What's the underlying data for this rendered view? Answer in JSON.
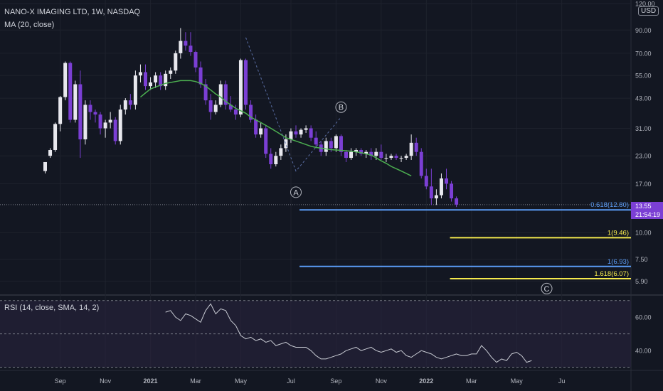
{
  "header": {
    "symbol_title": "NANO-X IMAGING LTD, 1W, NASDAQ",
    "ma_label": "MA (20, close)",
    "rsi_label": "RSI (14, close, SMA, 14, 2)",
    "currency": "USD"
  },
  "price_tag": {
    "price": "13.55",
    "countdown": "21:54:19"
  },
  "colors": {
    "background": "#131722",
    "up_candle": "#e8e8ee",
    "down_candle": "#7b3fd4",
    "ma_line": "#4caf50",
    "fib_blue": "#5b9cf6",
    "fib_yellow": "#f5e94d",
    "rsi_line": "#c8cbd3",
    "rsi_band": "#2a2440",
    "grid": "#1e222d",
    "axis_text": "#b2b5be"
  },
  "chart_data": [
    {
      "type": "candlestick",
      "title": "NANO-X IMAGING LTD, 1W, NASDAQ",
      "y_scale": "log",
      "ylim": [
        5.2,
        120
      ],
      "y_ticks": [
        "120.00",
        "90.00",
        "70.00",
        "55.00",
        "43.00",
        "31.00",
        "23.00",
        "17.00",
        "10.00",
        "7.50",
        "5.90"
      ],
      "x_ticks": [
        "Sep",
        "Nov",
        "2021",
        "Mar",
        "May",
        "Jul",
        "Sep",
        "Nov",
        "2022",
        "Mar",
        "May",
        "Ju"
      ],
      "candles": [
        [
          19.5,
          21.5,
          19,
          21.5
        ],
        [
          23,
          25,
          22.5,
          24.5
        ],
        [
          24.5,
          33,
          24,
          32.5
        ],
        [
          32.5,
          44,
          30,
          43.5
        ],
        [
          43.5,
          64,
          42,
          63
        ],
        [
          63,
          64,
          33,
          34
        ],
        [
          34,
          52,
          33,
          50
        ],
        [
          50,
          58,
          22.5,
          27.5
        ],
        [
          27.5,
          42,
          26,
          40
        ],
        [
          40,
          42,
          34,
          37
        ],
        [
          37,
          38,
          33,
          36
        ],
        [
          36,
          37,
          29,
          31
        ],
        [
          31,
          34,
          28,
          33
        ],
        [
          33,
          37,
          31,
          34
        ],
        [
          34,
          35,
          26,
          27
        ],
        [
          27,
          40,
          26,
          38
        ],
        [
          38,
          43,
          36,
          42
        ],
        [
          42,
          45,
          38,
          40
        ],
        [
          40,
          58,
          38,
          55
        ],
        [
          55,
          62,
          51,
          57
        ],
        [
          57,
          62,
          47,
          49
        ],
        [
          49,
          54,
          47,
          51
        ],
        [
          51,
          57,
          48,
          55
        ],
        [
          55,
          57,
          47,
          49
        ],
        [
          49,
          58,
          47,
          56
        ],
        [
          56,
          60,
          53,
          58
        ],
        [
          58,
          72,
          56,
          70
        ],
        [
          70,
          92,
          66,
          80
        ],
        [
          80,
          88,
          72,
          76
        ],
        [
          76,
          88,
          68,
          71
        ],
        [
          71,
          72,
          57,
          60
        ],
        [
          60,
          64,
          48,
          50
        ],
        [
          50,
          53,
          40,
          42
        ],
        [
          42,
          45,
          34,
          37
        ],
        [
          37,
          42,
          36,
          40
        ],
        [
          40,
          52,
          39,
          50
        ],
        [
          50,
          52,
          38,
          40
        ],
        [
          40,
          44,
          37,
          38
        ],
        [
          38,
          40,
          34,
          36
        ],
        [
          36,
          66,
          35,
          65
        ],
        [
          65,
          66,
          38,
          40
        ],
        [
          40,
          42,
          33,
          34
        ],
        [
          34,
          36,
          28,
          29
        ],
        [
          29,
          33,
          28,
          31
        ],
        [
          31,
          32,
          22.5,
          23.5
        ],
        [
          23.5,
          25,
          20,
          21
        ],
        [
          21,
          24,
          20.5,
          23
        ],
        [
          23,
          26,
          22,
          25
        ],
        [
          25,
          29,
          24,
          27.5
        ],
        [
          27.5,
          31,
          26.5,
          30
        ],
        [
          30,
          32,
          28,
          29
        ],
        [
          29,
          31,
          28,
          30.5
        ],
        [
          30.5,
          32,
          29.5,
          31
        ],
        [
          31,
          32,
          27,
          28
        ],
        [
          28,
          30,
          25,
          26
        ],
        [
          26,
          27,
          23,
          24
        ],
        [
          24,
          28,
          23,
          27
        ],
        [
          27,
          28,
          24,
          25
        ],
        [
          25,
          29,
          24,
          28.5
        ],
        [
          28.5,
          29,
          23,
          24
        ],
        [
          24,
          24.5,
          21.5,
          22.5
        ],
        [
          22.5,
          25,
          22,
          24
        ],
        [
          24,
          25,
          23,
          24.5
        ],
        [
          24.5,
          25,
          23,
          23.5
        ],
        [
          23.5,
          24.5,
          22.5,
          24
        ],
        [
          24,
          25,
          22,
          23
        ],
        [
          23,
          25,
          22,
          24
        ],
        [
          24,
          26,
          22,
          22.5
        ],
        [
          22.5,
          23.5,
          21.5,
          22.5
        ],
        [
          22.5,
          23.5,
          22,
          23
        ],
        [
          23,
          23.5,
          22,
          22.5
        ],
        [
          22.5,
          23,
          21.5,
          22.5
        ],
        [
          22.5,
          23.5,
          22,
          23
        ],
        [
          23,
          29,
          22,
          26.5
        ],
        [
          26.5,
          28,
          23,
          24
        ],
        [
          24,
          25,
          18,
          18.5
        ],
        [
          18.5,
          20,
          16,
          16.5
        ],
        [
          16.5,
          20,
          13.5,
          14.5
        ],
        [
          14.5,
          16,
          13.5,
          15
        ],
        [
          15,
          19,
          14.5,
          18
        ],
        [
          18,
          20,
          16,
          17
        ],
        [
          17,
          17.5,
          14,
          14.5
        ],
        [
          14.5,
          14.8,
          13.2,
          13.55
        ]
      ],
      "moving_average": {
        "name": "MA (20, close)",
        "start_index": 19,
        "values": [
          43.5,
          45.5,
          47.5,
          48.5,
          49.5,
          50.5,
          51,
          51.5,
          52,
          52,
          52,
          51.5,
          50.5,
          49,
          47,
          45,
          43.5,
          41.5,
          40,
          38.5,
          37.5,
          36.5,
          35,
          34,
          33,
          32,
          31,
          30,
          29,
          28,
          27.5,
          27,
          26.5,
          26,
          25.5,
          25.2,
          25,
          24.8,
          24.6,
          24.5,
          24.4,
          24.3,
          24.2,
          24,
          23.8,
          23.5,
          23.2,
          22.5,
          21.8,
          21.2,
          20.5,
          20,
          19.5,
          19,
          18.5
        ]
      },
      "fib_levels": [
        {
          "label": "0.618(12.80)",
          "value": 12.8,
          "color": "blue",
          "start_index": 51
        },
        {
          "label": "1(9.46)",
          "value": 9.46,
          "color": "yellow",
          "start_index": 81
        },
        {
          "label": "1(6.93)",
          "value": 6.93,
          "color": "blue",
          "start_index": 51
        },
        {
          "label": "1.618(6.07)",
          "value": 6.07,
          "color": "yellow",
          "start_index": 81
        }
      ],
      "wave_labels": [
        {
          "text": "A",
          "index": 50,
          "value": 15.5
        },
        {
          "text": "B",
          "index": 59,
          "value": 39
        },
        {
          "text": "C",
          "index": 100,
          "value": 5.45
        }
      ],
      "wave_path": [
        [
          40,
          83
        ],
        [
          50,
          19.5
        ],
        [
          59,
          35
        ]
      ],
      "current_price": 13.55
    },
    {
      "type": "line",
      "title": "RSI (14, close, SMA, 14, 2)",
      "ylim": [
        29,
        72
      ],
      "y_ticks": [
        "60.00",
        "40.00"
      ],
      "band": [
        30,
        70
      ],
      "midline": 50,
      "start_index": 24,
      "values": [
        63,
        64,
        60,
        58,
        62,
        61,
        59,
        57,
        64,
        68,
        62,
        65,
        64,
        58,
        55,
        49,
        47,
        48,
        46,
        47,
        45,
        46,
        43,
        44,
        45,
        43,
        42,
        42,
        42,
        40,
        37,
        35,
        35,
        36,
        37,
        38,
        40,
        41,
        42,
        40,
        41,
        42,
        40,
        39,
        40,
        41,
        39,
        40,
        37,
        36,
        38,
        40,
        39,
        38,
        36,
        35,
        36,
        37,
        38,
        37,
        37,
        38,
        38,
        43,
        40,
        36,
        33,
        35,
        34,
        38,
        39,
        37,
        33,
        34
      ]
    }
  ]
}
